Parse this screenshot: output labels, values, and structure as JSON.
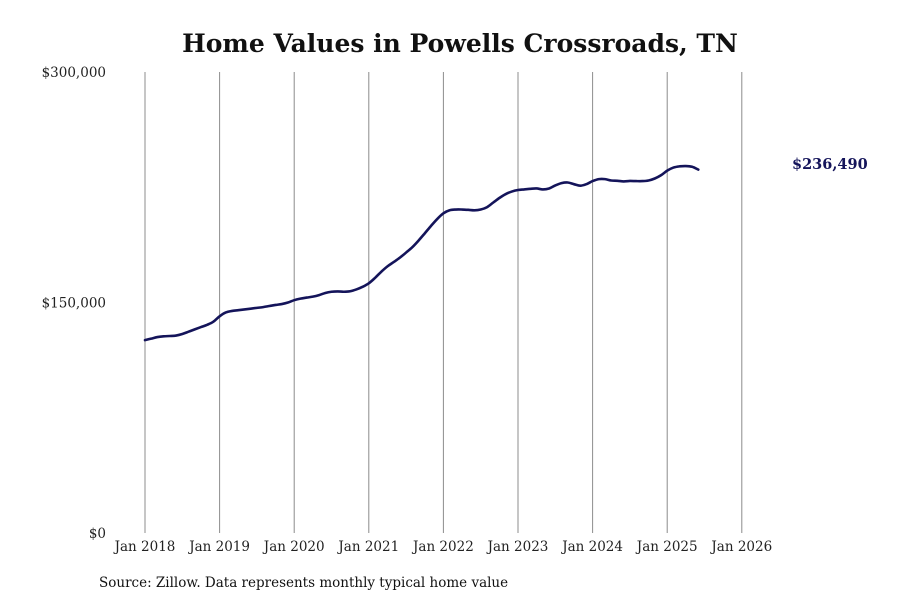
{
  "chart_data": {
    "type": "line",
    "title": "Home Values in Powells Crossroads, TN",
    "ylim": [
      0,
      300000
    ],
    "y_ticks": [
      {
        "value": 0,
        "label": "$0"
      },
      {
        "value": 150000,
        "label": "$150,000"
      },
      {
        "value": 300000,
        "label": "$300,000"
      }
    ],
    "x_ticks": [
      {
        "value": "2018-01",
        "label": "Jan 2018"
      },
      {
        "value": "2019-01",
        "label": "Jan 2019"
      },
      {
        "value": "2020-01",
        "label": "Jan 2020"
      },
      {
        "value": "2021-01",
        "label": "Jan 2021"
      },
      {
        "value": "2022-01",
        "label": "Jan 2022"
      },
      {
        "value": "2023-01",
        "label": "Jan 2023"
      },
      {
        "value": "2024-01",
        "label": "Jan 2024"
      },
      {
        "value": "2025-01",
        "label": "Jan 2025"
      },
      {
        "value": "2026-01",
        "label": "Jan 2026"
      }
    ],
    "grid": "vertical",
    "line_color": "#14145a",
    "end_label": "$236,490",
    "series": [
      {
        "points": [
          [
            "2018-01",
            125500
          ],
          [
            "2018-02",
            126500
          ],
          [
            "2018-03",
            127500
          ],
          [
            "2018-04",
            128000
          ],
          [
            "2018-05",
            128200
          ],
          [
            "2018-06",
            128500
          ],
          [
            "2018-07",
            129500
          ],
          [
            "2018-08",
            131000
          ],
          [
            "2018-09",
            132500
          ],
          [
            "2018-10",
            134000
          ],
          [
            "2018-11",
            135500
          ],
          [
            "2018-12",
            137500
          ],
          [
            "2019-01",
            141000
          ],
          [
            "2019-02",
            143500
          ],
          [
            "2019-03",
            144500
          ],
          [
            "2019-04",
            145000
          ],
          [
            "2019-05",
            145500
          ],
          [
            "2019-06",
            146000
          ],
          [
            "2019-07",
            146500
          ],
          [
            "2019-08",
            147000
          ],
          [
            "2019-09",
            147700
          ],
          [
            "2019-10",
            148400
          ],
          [
            "2019-11",
            149000
          ],
          [
            "2019-12",
            150000
          ],
          [
            "2020-01",
            151500
          ],
          [
            "2020-02",
            152500
          ],
          [
            "2020-03",
            153200
          ],
          [
            "2020-04",
            153800
          ],
          [
            "2020-05",
            154800
          ],
          [
            "2020-06",
            156200
          ],
          [
            "2020-07",
            157000
          ],
          [
            "2020-08",
            157200
          ],
          [
            "2020-09",
            157000
          ],
          [
            "2020-10",
            157300
          ],
          [
            "2020-11",
            158500
          ],
          [
            "2020-12",
            160200
          ],
          [
            "2021-01",
            162500
          ],
          [
            "2021-02",
            166000
          ],
          [
            "2021-03",
            170000
          ],
          [
            "2021-04",
            173500
          ],
          [
            "2021-05",
            176300
          ],
          [
            "2021-06",
            179200
          ],
          [
            "2021-07",
            182500
          ],
          [
            "2021-08",
            186000
          ],
          [
            "2021-09",
            190300
          ],
          [
            "2021-10",
            195000
          ],
          [
            "2021-11",
            199800
          ],
          [
            "2021-12",
            204300
          ],
          [
            "2022-01",
            208000
          ],
          [
            "2022-02",
            210000
          ],
          [
            "2022-03",
            210500
          ],
          [
            "2022-04",
            210500
          ],
          [
            "2022-05",
            210300
          ],
          [
            "2022-06",
            210000
          ],
          [
            "2022-07",
            210500
          ],
          [
            "2022-08",
            212000
          ],
          [
            "2022-09",
            215000
          ],
          [
            "2022-10",
            218000
          ],
          [
            "2022-11",
            220500
          ],
          [
            "2022-12",
            222200
          ],
          [
            "2023-01",
            223200
          ],
          [
            "2023-02",
            223600
          ],
          [
            "2023-03",
            224000
          ],
          [
            "2023-04",
            224200
          ],
          [
            "2023-05",
            223600
          ],
          [
            "2023-06",
            224200
          ],
          [
            "2023-07",
            226200
          ],
          [
            "2023-08",
            227700
          ],
          [
            "2023-09",
            228100
          ],
          [
            "2023-10",
            227000
          ],
          [
            "2023-11",
            226000
          ],
          [
            "2023-12",
            227000
          ],
          [
            "2024-01",
            229000
          ],
          [
            "2024-02",
            230300
          ],
          [
            "2024-03",
            230300
          ],
          [
            "2024-04",
            229400
          ],
          [
            "2024-05",
            229200
          ],
          [
            "2024-06",
            228800
          ],
          [
            "2024-07",
            229100
          ],
          [
            "2024-08",
            229000
          ],
          [
            "2024-09",
            229000
          ],
          [
            "2024-10",
            229400
          ],
          [
            "2024-11",
            230700
          ],
          [
            "2024-12",
            232800
          ],
          [
            "2025-01",
            235800
          ],
          [
            "2025-02",
            237800
          ],
          [
            "2025-03",
            238600
          ],
          [
            "2025-04",
            238800
          ],
          [
            "2025-05",
            238300
          ],
          [
            "2025-06",
            236490
          ]
        ]
      }
    ]
  },
  "footer": {
    "source": "Source: Zillow. Data represents monthly typical home value"
  }
}
